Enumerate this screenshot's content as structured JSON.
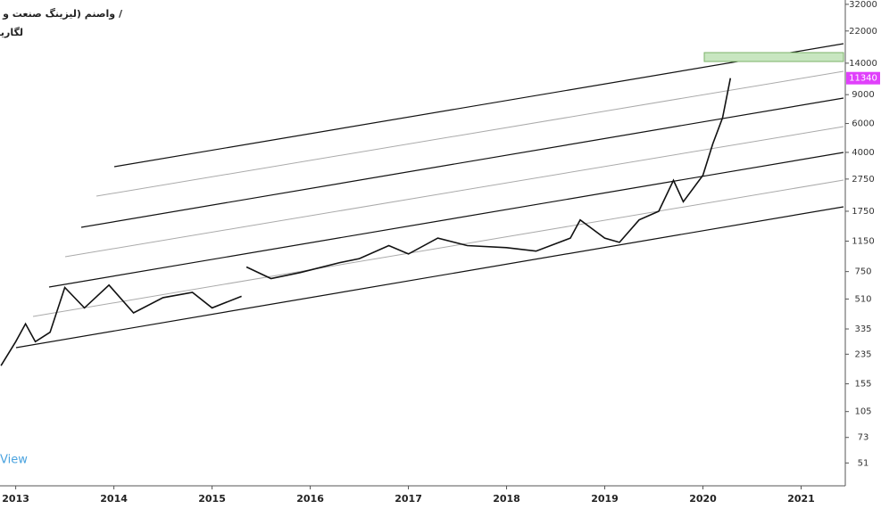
{
  "chart_data": {
    "type": "line",
    "title": "واصنم (لیزینگ صنعت و معدن) /",
    "subtitle": "لگاریتم",
    "watermark": "View",
    "log_scale": true,
    "xlim": [
      2012.84,
      2021.45
    ],
    "xticks": [
      2013,
      2014,
      2015,
      2016,
      2017,
      2018,
      2019,
      2020,
      2021
    ],
    "ylim": [
      37,
      34000
    ],
    "yticks": [
      51,
      73,
      105,
      155,
      235,
      335,
      510,
      750,
      1150,
      1750,
      2750,
      4000,
      6000,
      9000,
      14000,
      22000,
      32000
    ],
    "series": [
      {
        "color": "#111111",
        "x": [
          2012.85,
          2013.0,
          2013.1,
          2013.2,
          2013.35,
          2013.5,
          2013.7,
          2013.95,
          2014.2,
          2014.5,
          2014.8,
          2015.0,
          2015.3,
          2015.33,
          2015.35,
          2015.6,
          2015.9,
          2016.3,
          2016.5,
          2016.8,
          2017.0,
          2017.3,
          2017.6,
          2018.0,
          2018.3,
          2018.65,
          2018.75,
          2019.0,
          2019.15,
          2019.35,
          2019.55,
          2019.7,
          2019.8,
          2020.0,
          2020.1,
          2020.2,
          2020.28
        ],
        "values": [
          200,
          280,
          360,
          280,
          320,
          600,
          450,
          620,
          420,
          520,
          560,
          450,
          530,
          null,
          800,
          680,
          740,
          850,
          900,
          1080,
          960,
          1200,
          1080,
          1050,
          1000,
          1200,
          1550,
          1200,
          1130,
          1550,
          1750,
          2700,
          2000,
          2900,
          4500,
          6500,
          11340
        ]
      }
    ]
  }
}
